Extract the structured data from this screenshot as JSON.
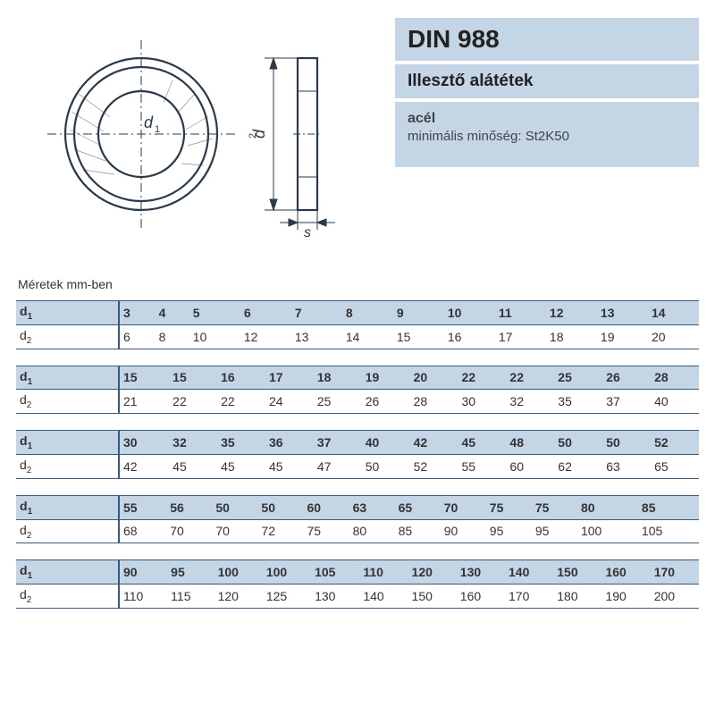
{
  "info": {
    "title": "DIN 988",
    "subtitle": "Illesztő alátétek",
    "material": "acél",
    "min_quality": "minimális minőség: St2K50"
  },
  "diagram": {
    "labels": {
      "d1": "d",
      "d1_sub": "1",
      "d2": "d",
      "d2_sub": "2",
      "s": "s"
    },
    "stroke": "#2a3a4a",
    "bg": "#ffffff"
  },
  "caption": "Méretek mm-ben",
  "row_label_1": "d",
  "row_label_1_sub": "1",
  "row_label_2": "d",
  "row_label_2_sub": "2",
  "groups": [
    {
      "d1": [
        "3",
        "4",
        "5",
        "6",
        "7",
        "8",
        "9",
        "10",
        "11",
        "12",
        "13",
        "14"
      ],
      "d2": [
        "6",
        "8",
        "10",
        "12",
        "13",
        "14",
        "15",
        "16",
        "17",
        "18",
        "19",
        "20"
      ]
    },
    {
      "d1": [
        "15",
        "15",
        "16",
        "17",
        "18",
        "19",
        "20",
        "22",
        "22",
        "25",
        "26",
        "28"
      ],
      "d2": [
        "21",
        "22",
        "22",
        "24",
        "25",
        "26",
        "28",
        "30",
        "32",
        "35",
        "37",
        "40"
      ]
    },
    {
      "d1": [
        "30",
        "32",
        "35",
        "36",
        "37",
        "40",
        "42",
        "45",
        "48",
        "50",
        "50",
        "52"
      ],
      "d2": [
        "42",
        "45",
        "45",
        "45",
        "47",
        "50",
        "52",
        "55",
        "60",
        "62",
        "63",
        "65"
      ]
    },
    {
      "d1": [
        "55",
        "56",
        "50",
        "50",
        "60",
        "63",
        "65",
        "70",
        "75",
        "75",
        "80",
        "85"
      ],
      "d2": [
        "68",
        "70",
        "70",
        "72",
        "75",
        "80",
        "85",
        "90",
        "95",
        "95",
        "100",
        "105"
      ]
    },
    {
      "d1": [
        "90",
        "95",
        "100",
        "100",
        "105",
        "110",
        "120",
        "130",
        "140",
        "150",
        "160",
        "170"
      ],
      "d2": [
        "110",
        "115",
        "120",
        "125",
        "130",
        "140",
        "150",
        "160",
        "170",
        "180",
        "190",
        "200"
      ]
    }
  ],
  "table_style": {
    "header_bg": "#c4d5e6",
    "border_color": "#3a5a7a",
    "font_size": 14
  }
}
